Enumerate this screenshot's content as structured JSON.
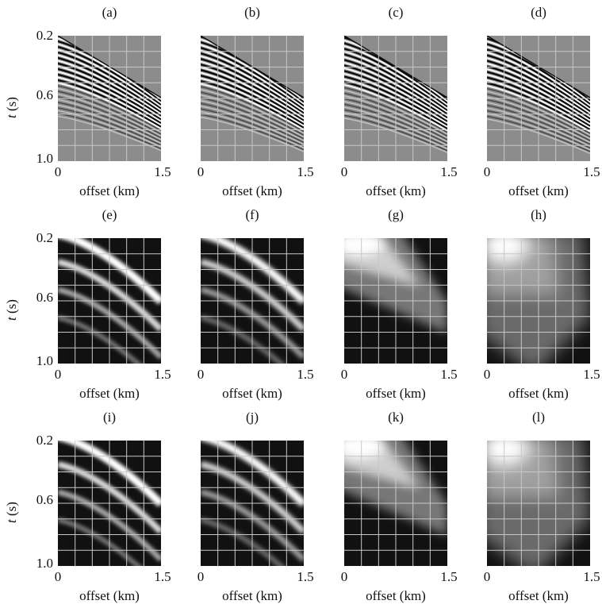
{
  "figure": {
    "x_ticks": [
      "0",
      "1.5"
    ],
    "y_ticks": [
      "0.2",
      "0.6",
      "1.0"
    ],
    "xlabel": "offset (km)",
    "ylabel_var": "t",
    "ylabel_unit": "(s)",
    "rows": [
      {
        "kind": "seismic",
        "panels": [
          {
            "label": "(a)",
            "variant": 0
          },
          {
            "label": "(b)",
            "variant": 1
          },
          {
            "label": "(c)",
            "variant": 2
          },
          {
            "label": "(d)",
            "variant": 3
          }
        ]
      },
      {
        "kind": "spectrum",
        "panels": [
          {
            "label": "(e)",
            "variant": 0
          },
          {
            "label": "(f)",
            "variant": 1
          },
          {
            "label": "(g)",
            "variant": 2
          },
          {
            "label": "(h)",
            "variant": 3
          }
        ]
      },
      {
        "kind": "spectrum",
        "panels": [
          {
            "label": "(i)",
            "variant": 0
          },
          {
            "label": "(j)",
            "variant": 1
          },
          {
            "label": "(k)",
            "variant": 2
          },
          {
            "label": "(l)",
            "variant": 3
          }
        ]
      }
    ]
  },
  "chart_data": [
    {
      "type": "heatmap",
      "title": "(a)",
      "xlabel": "offset (km)",
      "ylabel": "t (s)",
      "xlim": [
        0,
        1.5
      ],
      "ylim": [
        1.0,
        0.2
      ],
      "grid": true
    },
    {
      "type": "heatmap",
      "title": "(b)",
      "xlabel": "offset (km)",
      "ylabel": "t (s)",
      "xlim": [
        0,
        1.5
      ],
      "ylim": [
        1.0,
        0.2
      ],
      "grid": true
    },
    {
      "type": "heatmap",
      "title": "(c)",
      "xlabel": "offset (km)",
      "ylabel": "t (s)",
      "xlim": [
        0,
        1.5
      ],
      "ylim": [
        1.0,
        0.2
      ],
      "grid": true
    },
    {
      "type": "heatmap",
      "title": "(d)",
      "xlabel": "offset (km)",
      "ylabel": "t (s)",
      "xlim": [
        0,
        1.5
      ],
      "ylim": [
        1.0,
        0.2
      ],
      "grid": true
    },
    {
      "type": "heatmap",
      "title": "(e)",
      "xlabel": "offset (km)",
      "ylabel": "t (s)",
      "xlim": [
        0,
        1.5
      ],
      "ylim": [
        1.0,
        0.2
      ],
      "grid": true
    },
    {
      "type": "heatmap",
      "title": "(f)",
      "xlabel": "offset (km)",
      "ylabel": "t (s)",
      "xlim": [
        0,
        1.5
      ],
      "ylim": [
        1.0,
        0.2
      ],
      "grid": true
    },
    {
      "type": "heatmap",
      "title": "(g)",
      "xlabel": "offset (km)",
      "ylabel": "t (s)",
      "xlim": [
        0,
        1.5
      ],
      "ylim": [
        1.0,
        0.2
      ],
      "grid": true
    },
    {
      "type": "heatmap",
      "title": "(h)",
      "xlabel": "offset (km)",
      "ylabel": "t (s)",
      "xlim": [
        0,
        1.5
      ],
      "ylim": [
        1.0,
        0.2
      ],
      "grid": true
    },
    {
      "type": "heatmap",
      "title": "(i)",
      "xlabel": "offset (km)",
      "ylabel": "t (s)",
      "xlim": [
        0,
        1.5
      ],
      "ylim": [
        1.0,
        0.2
      ],
      "grid": true
    },
    {
      "type": "heatmap",
      "title": "(j)",
      "xlabel": "offset (km)",
      "ylabel": "t (s)",
      "xlim": [
        0,
        1.5
      ],
      "ylim": [
        1.0,
        0.2
      ],
      "grid": true
    },
    {
      "type": "heatmap",
      "title": "(k)",
      "xlabel": "offset (km)",
      "ylabel": "t (s)",
      "xlim": [
        0,
        1.5
      ],
      "ylim": [
        1.0,
        0.2
      ],
      "grid": true
    },
    {
      "type": "heatmap",
      "title": "(l)",
      "xlabel": "offset (km)",
      "ylabel": "t (s)",
      "xlim": [
        0,
        1.5
      ],
      "ylim": [
        1.0,
        0.2
      ],
      "grid": true
    }
  ]
}
